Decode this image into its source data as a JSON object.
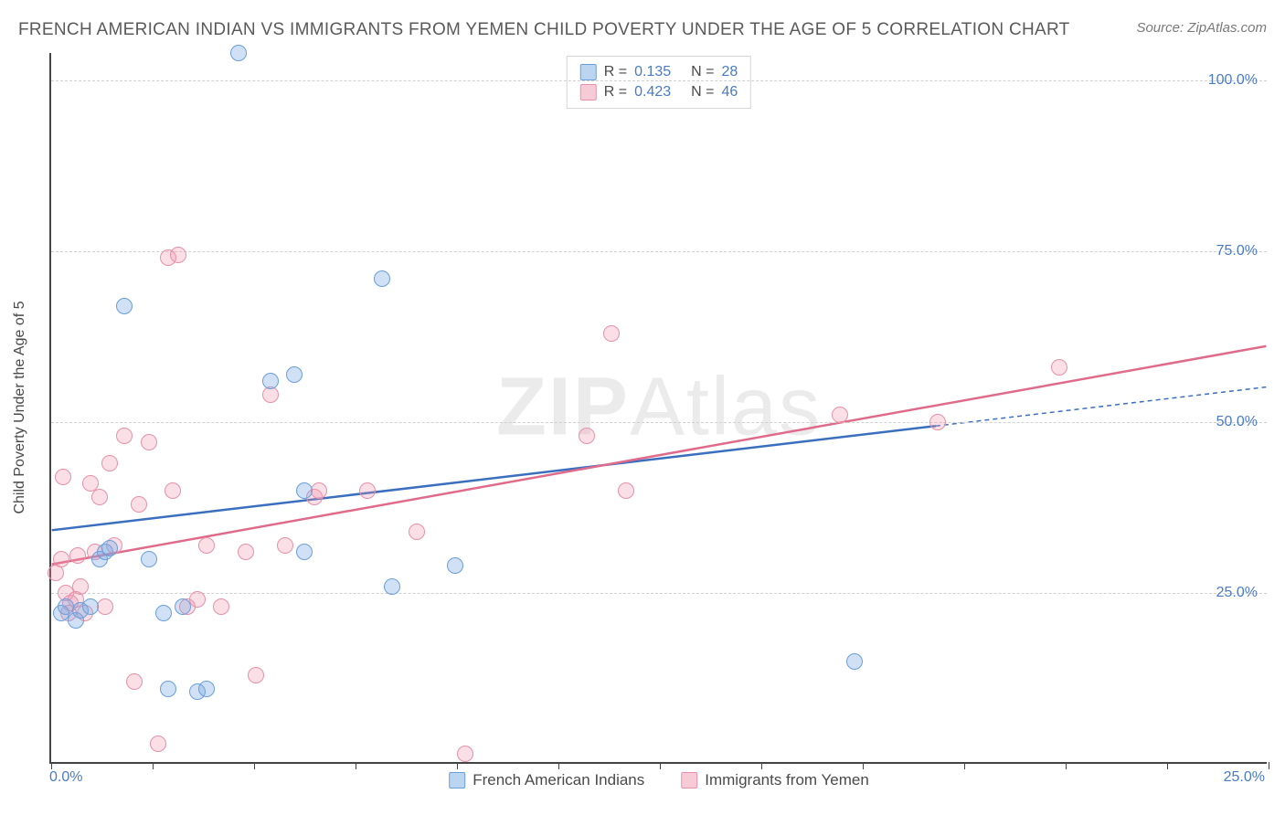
{
  "title": "FRENCH AMERICAN INDIAN VS IMMIGRANTS FROM YEMEN CHILD POVERTY UNDER THE AGE OF 5 CORRELATION CHART",
  "source": "Source: ZipAtlas.com",
  "ylabel": "Child Poverty Under the Age of 5",
  "watermark_bold": "ZIP",
  "watermark_rest": "Atlas",
  "chart": {
    "type": "scatter",
    "xlim": [
      0,
      25
    ],
    "ylim": [
      0,
      104
    ],
    "x_ticks": [
      0,
      2.083,
      4.166,
      6.25,
      8.333,
      10.416,
      12.5,
      14.583,
      16.666,
      18.75,
      20.833,
      22.916,
      25
    ],
    "x_tick_labels": {
      "0": "0.0%",
      "25": "25.0%"
    },
    "y_gridlines": [
      25,
      50,
      75,
      100
    ],
    "y_tick_labels": {
      "25": "25.0%",
      "50": "50.0%",
      "75": "75.0%",
      "100": "100.0%"
    },
    "background_color": "#ffffff",
    "grid_color": "#d0d0d0",
    "axis_color": "#444444",
    "label_color": "#4a7bc8",
    "marker_size": 18,
    "series": {
      "blue": {
        "label": "French American Indians",
        "fill_color": "rgba(120,170,225,0.35)",
        "stroke_color": "#6a9edb",
        "trend_color": "#3a6fc0",
        "R": "0.135",
        "N": "28",
        "trend": {
          "x1": 0,
          "y1": 34,
          "x2": 25,
          "y2": 55,
          "solid_until_x": 18.2
        },
        "points": [
          [
            0.2,
            22
          ],
          [
            0.3,
            23
          ],
          [
            0.5,
            21
          ],
          [
            0.6,
            22.5
          ],
          [
            0.8,
            23
          ],
          [
            1.0,
            30
          ],
          [
            1.1,
            31
          ],
          [
            1.2,
            31.5
          ],
          [
            1.5,
            67
          ],
          [
            2.0,
            30
          ],
          [
            2.3,
            22
          ],
          [
            2.4,
            11
          ],
          [
            2.7,
            23
          ],
          [
            3.0,
            10.5
          ],
          [
            3.2,
            11
          ],
          [
            3.85,
            104
          ],
          [
            4.5,
            56
          ],
          [
            5.0,
            57
          ],
          [
            5.2,
            31
          ],
          [
            5.2,
            40
          ],
          [
            6.8,
            71
          ],
          [
            7.0,
            26
          ],
          [
            8.3,
            29
          ],
          [
            16.5,
            15
          ]
        ]
      },
      "pink": {
        "label": "Immigrants from Yemen",
        "fill_color": "rgba(240,150,175,0.3)",
        "stroke_color": "#e890a8",
        "trend_color": "#e06a8a",
        "R": "0.423",
        "N": "46",
        "trend": {
          "x1": 0,
          "y1": 29,
          "x2": 25,
          "y2": 61,
          "solid_until_x": 25
        },
        "points": [
          [
            0.1,
            28
          ],
          [
            0.2,
            30
          ],
          [
            0.25,
            42
          ],
          [
            0.3,
            25
          ],
          [
            0.35,
            22
          ],
          [
            0.4,
            23.5
          ],
          [
            0.5,
            24
          ],
          [
            0.55,
            30.5
          ],
          [
            0.6,
            26
          ],
          [
            0.7,
            22
          ],
          [
            0.8,
            41
          ],
          [
            0.9,
            31
          ],
          [
            1.0,
            39
          ],
          [
            1.1,
            23
          ],
          [
            1.2,
            44
          ],
          [
            1.3,
            32
          ],
          [
            1.5,
            48
          ],
          [
            1.7,
            12
          ],
          [
            1.8,
            38
          ],
          [
            2.0,
            47
          ],
          [
            2.2,
            3
          ],
          [
            2.4,
            74
          ],
          [
            2.5,
            40
          ],
          [
            2.6,
            74.5
          ],
          [
            2.8,
            23
          ],
          [
            3.0,
            24
          ],
          [
            3.2,
            32
          ],
          [
            3.5,
            23
          ],
          [
            4.0,
            31
          ],
          [
            4.2,
            13
          ],
          [
            4.5,
            54
          ],
          [
            4.8,
            32
          ],
          [
            5.4,
            39
          ],
          [
            5.5,
            40
          ],
          [
            6.5,
            40
          ],
          [
            7.5,
            34
          ],
          [
            8.5,
            1.5
          ],
          [
            11.0,
            48
          ],
          [
            11.5,
            63
          ],
          [
            11.8,
            40
          ],
          [
            16.2,
            51
          ],
          [
            18.2,
            50
          ],
          [
            20.7,
            58
          ]
        ]
      }
    }
  },
  "legend_top": {
    "rows": [
      {
        "series": "blue",
        "R_label": "R =",
        "N_label": "N ="
      },
      {
        "series": "pink",
        "R_label": "R =",
        "N_label": "N ="
      }
    ]
  }
}
